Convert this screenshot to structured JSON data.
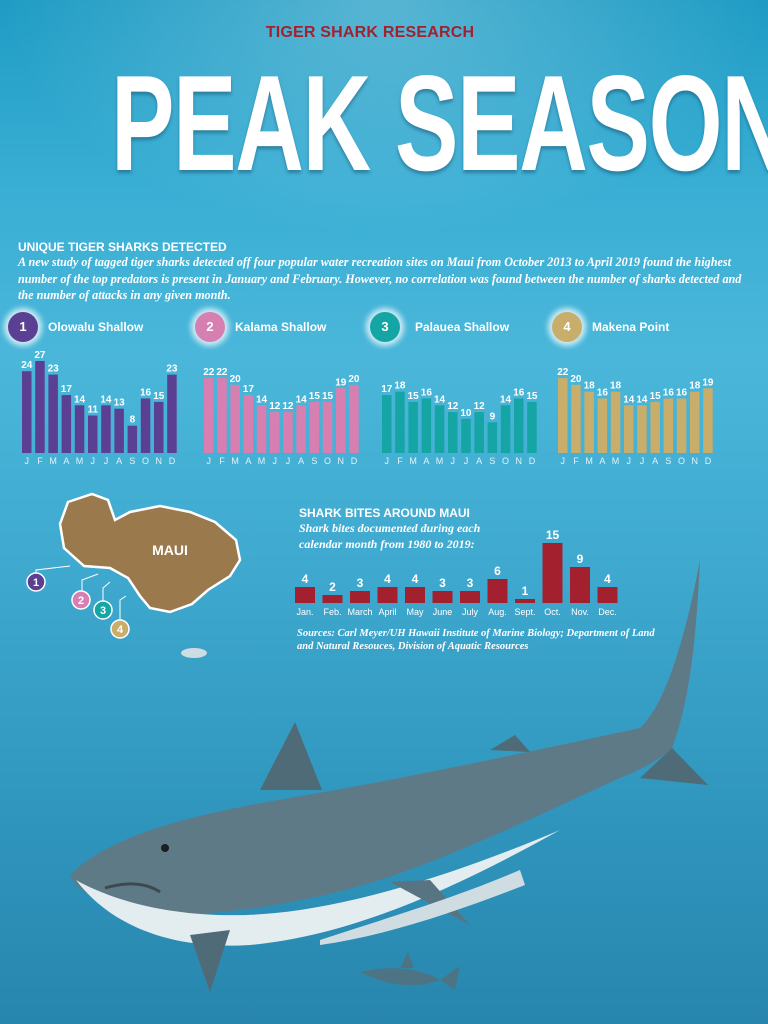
{
  "kicker": "TIGER SHARK RESEARCH",
  "headline": "PEAK SEASON",
  "detected": {
    "title": "UNIQUE TIGER SHARKS DETECTED",
    "intro": "A new study of tagged tiger sharks detected off four popular water recreation sites on Maui from October 2013 to April 2019 found the highest number of the top predators is present in January and February. However, no correlation was found between the number of sharks detected and the number of attacks in any given month."
  },
  "map": {
    "label": "MAUI",
    "color": "#9a7a4c"
  },
  "bites": {
    "title": "SHARK BITES AROUND MAUI",
    "subtitle": "Shark bites documented during each calendar month from 1980 to 2019:"
  },
  "sources": "Sources: Carl Meyer/UH Hawaii Institute of Marine Biology; Department of Land and Natural Resouces, Division of Aquatic Resources",
  "chart_data": [
    {
      "type": "bar",
      "number": "1",
      "name": "Olowalu Shallow",
      "color": "#5b3f93",
      "categories": [
        "J",
        "F",
        "M",
        "A",
        "M",
        "J",
        "J",
        "A",
        "S",
        "O",
        "N",
        "D"
      ],
      "values": [
        24,
        27,
        23,
        17,
        14,
        11,
        14,
        13,
        8,
        16,
        15,
        23
      ],
      "ylim": [
        0,
        27
      ]
    },
    {
      "type": "bar",
      "number": "2",
      "name": "Kalama Shallow",
      "color": "#d87fb2",
      "categories": [
        "J",
        "F",
        "M",
        "A",
        "M",
        "J",
        "J",
        "A",
        "S",
        "O",
        "N",
        "D"
      ],
      "values": [
        22,
        22,
        20,
        17,
        14,
        12,
        12,
        14,
        15,
        15,
        19,
        20
      ],
      "ylim": [
        0,
        27
      ]
    },
    {
      "type": "bar",
      "number": "3",
      "name": "Palauea Shallow",
      "color": "#15a5a5",
      "categories": [
        "J",
        "F",
        "M",
        "A",
        "M",
        "J",
        "J",
        "A",
        "S",
        "O",
        "N",
        "D"
      ],
      "values": [
        17,
        18,
        15,
        16,
        14,
        12,
        10,
        12,
        9,
        14,
        16,
        15
      ],
      "ylim": [
        0,
        27
      ]
    },
    {
      "type": "bar",
      "number": "4",
      "name": "Makena Point",
      "color": "#c9ad6a",
      "categories": [
        "J",
        "F",
        "M",
        "A",
        "M",
        "J",
        "J",
        "A",
        "S",
        "O",
        "N",
        "D"
      ],
      "values": [
        22,
        20,
        18,
        16,
        18,
        14,
        14,
        15,
        16,
        16,
        18,
        19
      ],
      "ylim": [
        0,
        27
      ]
    },
    {
      "type": "bar",
      "name": "Shark bites",
      "color": "#a3202f",
      "categories": [
        "Jan.",
        "Feb.",
        "March",
        "April",
        "May",
        "June",
        "July",
        "Aug.",
        "Sept.",
        "Oct.",
        "Nov.",
        "Dec."
      ],
      "values": [
        4,
        2,
        3,
        4,
        4,
        3,
        3,
        6,
        1,
        15,
        9,
        4
      ],
      "ylim": [
        0,
        15
      ]
    }
  ]
}
